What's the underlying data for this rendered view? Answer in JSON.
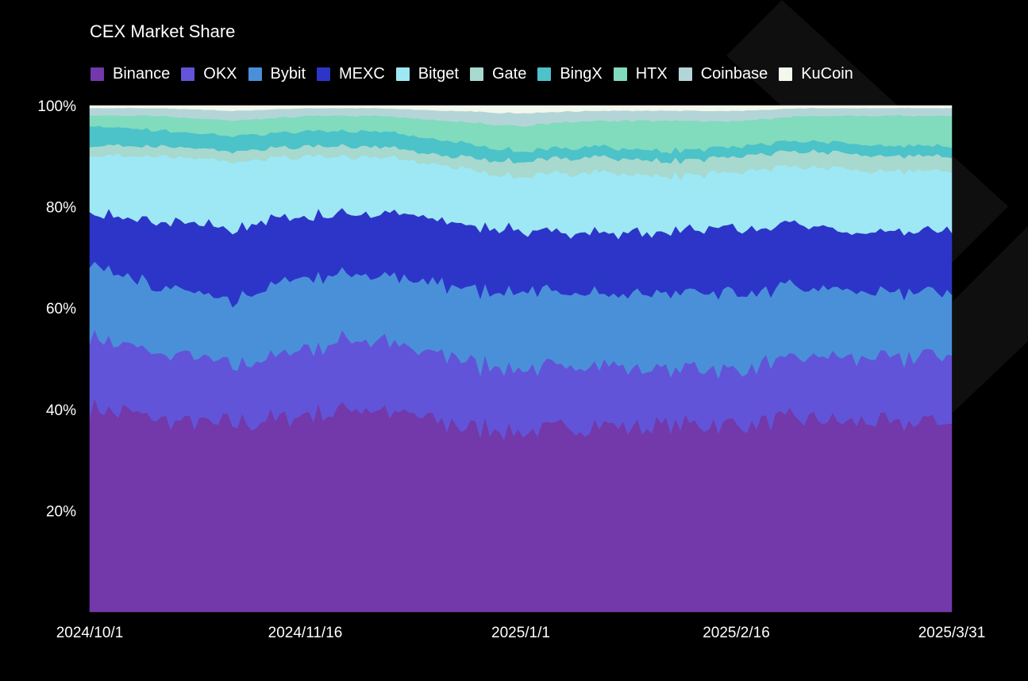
{
  "chart_data": {
    "type": "area",
    "stacked": true,
    "title": "CEX Market Share",
    "xlabel": "",
    "ylabel": "",
    "ylim": [
      0,
      100
    ],
    "y_ticks": [
      "20%",
      "40%",
      "60%",
      "80%",
      "100%"
    ],
    "x_ticks": [
      "2024/10/1",
      "2024/11/16",
      "2025/1/1",
      "2025/2/16",
      "2025/3/31"
    ],
    "x": [
      "2024/10/1",
      "2024/10/16",
      "2024/10/31",
      "2024/11/16",
      "2024/12/1",
      "2024/12/16",
      "2025/1/1",
      "2025/1/16",
      "2025/1/31",
      "2025/2/16",
      "2025/3/1",
      "2025/3/16",
      "2025/3/31"
    ],
    "legend_position": "top-left",
    "grid": false,
    "series": [
      {
        "name": "Binance",
        "color": "#7338a9",
        "values": [
          41,
          38,
          37,
          39,
          40,
          37,
          36,
          37,
          37,
          37,
          38,
          37,
          38
        ]
      },
      {
        "name": "OKX",
        "color": "#6254d8",
        "values": [
          14,
          13,
          12,
          13,
          14,
          13,
          12,
          12,
          11,
          11,
          12,
          13,
          13
        ]
      },
      {
        "name": "Bybit",
        "color": "#4a90d9",
        "values": [
          14,
          13,
          13,
          14,
          13,
          14,
          15,
          14,
          15,
          15,
          14,
          13,
          12
        ]
      },
      {
        "name": "MEXC",
        "color": "#2d35c9",
        "values": [
          10,
          13,
          14,
          12,
          12,
          13,
          12,
          12,
          12,
          13,
          12,
          12,
          12
        ]
      },
      {
        "name": "Bitget",
        "color": "#9ee8f5",
        "values": [
          11,
          13,
          13,
          12,
          11,
          11,
          11,
          12,
          11,
          11,
          12,
          12,
          12
        ]
      },
      {
        "name": "Gate",
        "color": "#a7d9ce",
        "values": [
          2,
          2,
          2,
          2,
          2,
          2,
          3,
          3,
          3,
          3,
          3,
          3,
          3
        ]
      },
      {
        "name": "BingX",
        "color": "#4cc2c9",
        "values": [
          4,
          3,
          3,
          3,
          3,
          3,
          2,
          2,
          2,
          2,
          2,
          2,
          2
        ]
      },
      {
        "name": "HTX",
        "color": "#80dcbd",
        "values": [
          2,
          3,
          3,
          3,
          3,
          4,
          5,
          5,
          6,
          5,
          5,
          6,
          6
        ]
      },
      {
        "name": "Coinbase",
        "color": "#b4d5d8",
        "values": [
          1.5,
          1.5,
          2,
          1.5,
          1.5,
          2,
          2.5,
          2,
          2,
          2,
          1.5,
          1.5,
          1.5
        ]
      },
      {
        "name": "KuCoin",
        "color": "#f3f8ec",
        "values": [
          0.5,
          0.5,
          1,
          0.5,
          0.5,
          1,
          1.5,
          1,
          1,
          1,
          0.5,
          0.5,
          0.5
        ]
      }
    ]
  }
}
